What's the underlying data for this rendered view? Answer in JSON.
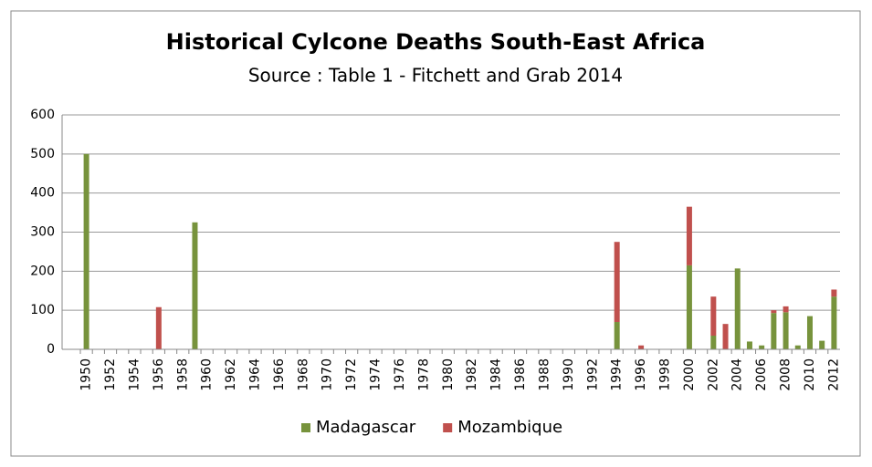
{
  "chart_data": {
    "type": "stacked_bar",
    "title": "Historical Cylcone Deaths South-East Africa",
    "subtitle": "Source : Table 1 - Fitchett and Grab 2014",
    "categories": [
      "1950",
      null,
      "1952",
      null,
      "1954",
      null,
      "1956",
      null,
      "1958",
      null,
      "1960",
      null,
      "1962",
      null,
      "1964",
      null,
      "1966",
      null,
      "1968",
      null,
      "1970",
      null,
      "1972",
      null,
      "1974",
      null,
      "1976",
      null,
      "1978",
      null,
      "1980",
      null,
      "1982",
      null,
      "1984",
      null,
      "1986",
      null,
      "1988",
      null,
      "1990",
      null,
      "1992",
      null,
      "1994",
      null,
      "1996",
      null,
      "1998",
      null,
      "2000",
      null,
      "2002",
      null,
      "2004",
      null,
      "2006",
      null,
      "2008",
      null,
      "2010",
      null,
      "2012"
    ],
    "series": [
      {
        "name": "Madagascar",
        "color": "#77933c",
        "values": [
          500,
          null,
          null,
          null,
          null,
          null,
          null,
          null,
          null,
          325,
          null,
          null,
          null,
          null,
          null,
          null,
          null,
          null,
          null,
          null,
          null,
          null,
          null,
          null,
          null,
          null,
          null,
          null,
          null,
          null,
          null,
          null,
          null,
          null,
          null,
          null,
          null,
          null,
          null,
          null,
          null,
          null,
          null,
          null,
          70,
          null,
          null,
          null,
          null,
          null,
          215,
          null,
          35,
          null,
          207,
          20,
          10,
          93,
          95,
          10,
          85,
          22,
          135
        ]
      },
      {
        "name": "Mozambique",
        "color": "#c0504d",
        "values": [
          null,
          null,
          null,
          null,
          null,
          null,
          108,
          null,
          null,
          null,
          null,
          null,
          null,
          null,
          null,
          null,
          null,
          null,
          null,
          null,
          null,
          null,
          null,
          null,
          null,
          null,
          null,
          null,
          null,
          null,
          null,
          null,
          null,
          null,
          null,
          null,
          null,
          null,
          null,
          null,
          null,
          null,
          null,
          null,
          205,
          null,
          10,
          null,
          null,
          null,
          150,
          null,
          100,
          65,
          null,
          null,
          null,
          7,
          15,
          null,
          null,
          null,
          18
        ]
      }
    ],
    "ylim": [
      0,
      600
    ],
    "yticks": [
      0,
      100,
      200,
      300,
      400,
      500,
      600
    ],
    "grid": true,
    "legend": "bottom"
  }
}
